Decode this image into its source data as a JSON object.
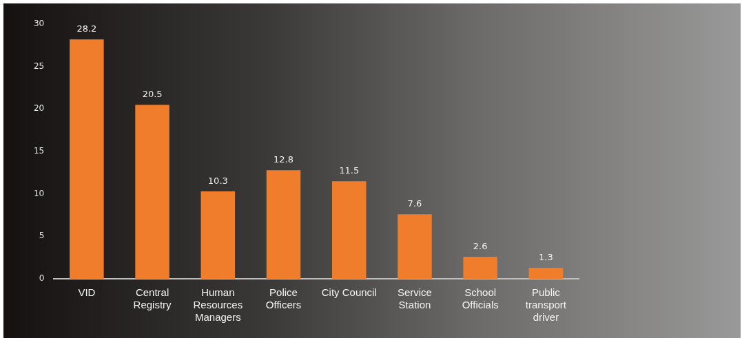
{
  "chart_data": {
    "type": "bar",
    "categories": [
      "VID",
      "Central Registry",
      "Human Resources Managers",
      "Police Officers",
      "City Council",
      "Service Station",
      "School Officials",
      "Public transport driver"
    ],
    "values": [
      28.2,
      20.5,
      10.3,
      12.8,
      11.5,
      7.6,
      2.6,
      1.3
    ],
    "color": "#f07d2c",
    "ylim": [
      0,
      30
    ],
    "yticks": [
      0,
      5,
      10,
      15,
      20,
      25,
      30
    ],
    "grid": false,
    "legend": false,
    "data_labels": true
  }
}
